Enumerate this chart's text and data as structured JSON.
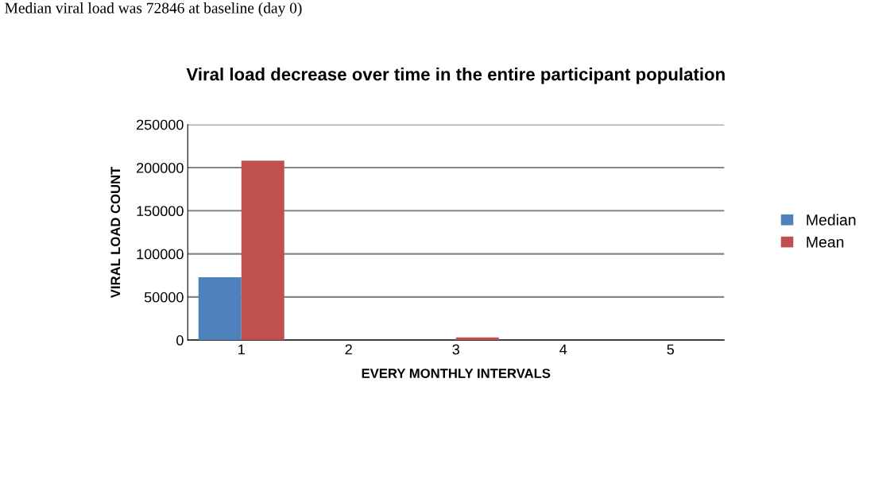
{
  "chart_data": {
    "type": "bar",
    "title": "Viral load decrease over time in the entire participant population",
    "xlabel": "EVERY MONTHLY INTERVALS",
    "ylabel": "VIRAL LOAD COUNT",
    "categories": [
      "1",
      "2",
      "3",
      "4",
      "5"
    ],
    "series": [
      {
        "name": "Median",
        "color": "#4f81bd",
        "values": [
          73000,
          0,
          0,
          0,
          0
        ]
      },
      {
        "name": "Mean",
        "color": "#c0504d",
        "values": [
          208000,
          0,
          3000,
          0,
          0
        ]
      }
    ],
    "ylim": [
      0,
      250000
    ],
    "yticks": [
      0,
      50000,
      100000,
      150000,
      200000,
      250000
    ],
    "grid": "y",
    "legend": "right",
    "annotations": [
      "Median viral load was 72846 at baseline (day 0)"
    ]
  }
}
